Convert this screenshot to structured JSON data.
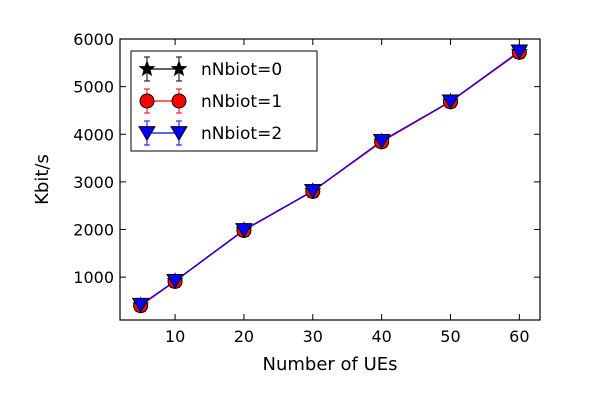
{
  "chart_data": {
    "type": "line",
    "title": "",
    "xlabel": "Number of UEs",
    "ylabel": "Kbit/s",
    "xlim": [
      2,
      63
    ],
    "ylim": [
      100,
      6000
    ],
    "xticks": [
      10,
      20,
      30,
      40,
      50,
      60
    ],
    "yticks": [
      1000,
      2000,
      3000,
      4000,
      5000,
      6000
    ],
    "grid": false,
    "legend_position": "upper-left",
    "x": [
      5,
      10,
      20,
      30,
      40,
      50,
      60
    ],
    "series": [
      {
        "name": "nNbiot=0",
        "color": "#000000",
        "marker": "star",
        "values": [
          410,
          920,
          1990,
          2810,
          3850,
          4690,
          5730
        ],
        "error": [
          60,
          70,
          80,
          80,
          90,
          90,
          110
        ]
      },
      {
        "name": "nNbiot=1",
        "color": "#ff0000",
        "marker": "circle",
        "values": [
          400,
          910,
          1980,
          2800,
          3840,
          4680,
          5720
        ],
        "error": [
          60,
          70,
          80,
          80,
          90,
          90,
          110
        ]
      },
      {
        "name": "nNbiot=2",
        "color": "#0000ff",
        "marker": "triangle-down",
        "values": [
          420,
          920,
          1990,
          2810,
          3860,
          4690,
          5740
        ],
        "error": [
          60,
          70,
          80,
          80,
          90,
          90,
          110
        ]
      }
    ]
  }
}
